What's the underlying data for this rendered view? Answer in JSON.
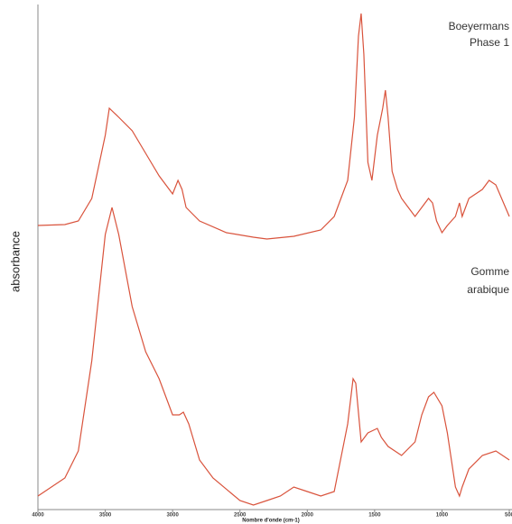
{
  "chart_data": {
    "type": "line",
    "ylabel": "absorbance",
    "xlabel": "Nombre d'onde (cm-1)",
    "xlim": [
      4000,
      480
    ],
    "ylim": [
      0,
      560
    ],
    "xticks": [
      4000,
      3500,
      3000,
      2500,
      2000,
      1500,
      1000,
      500
    ],
    "annotations": [
      [
        "Boeyermans",
        "Phase 1"
      ],
      [
        "Gomme",
        "arabique"
      ]
    ],
    "series": [
      {
        "color": "#d9533c",
        "x": [
          4000,
          3800,
          3700,
          3600,
          3500,
          3470,
          3400,
          3300,
          3200,
          3100,
          3000,
          2960,
          2930,
          2900,
          2800,
          2600,
          2400,
          2300,
          2100,
          1900,
          1800,
          1700,
          1650,
          1620,
          1600,
          1580,
          1550,
          1520,
          1480,
          1440,
          1420,
          1400,
          1370,
          1330,
          1300,
          1250,
          1200,
          1150,
          1100,
          1070,
          1040,
          1000,
          960,
          900,
          870,
          850,
          800,
          700,
          650,
          600,
          500
        ],
        "values": [
          315,
          316,
          320,
          345,
          415,
          445,
          435,
          420,
          395,
          370,
          350,
          365,
          355,
          335,
          320,
          307,
          302,
          300,
          303,
          310,
          325,
          365,
          435,
          525,
          550,
          505,
          385,
          365,
          415,
          445,
          465,
          435,
          375,
          355,
          345,
          335,
          325,
          335,
          345,
          340,
          320,
          307,
          315,
          325,
          340,
          325,
          345,
          355,
          365,
          360,
          325
        ]
      },
      {
        "color": "#d9533c",
        "x": [
          4000,
          3800,
          3700,
          3600,
          3500,
          3450,
          3400,
          3300,
          3200,
          3100,
          3000,
          2950,
          2920,
          2880,
          2800,
          2700,
          2500,
          2400,
          2300,
          2200,
          2100,
          2000,
          1900,
          1800,
          1700,
          1660,
          1640,
          1600,
          1550,
          1480,
          1450,
          1400,
          1300,
          1200,
          1150,
          1100,
          1060,
          1000,
          960,
          900,
          870,
          850,
          800,
          700,
          600,
          500
        ],
        "values": [
          15,
          35,
          65,
          165,
          305,
          335,
          305,
          225,
          175,
          145,
          105,
          105,
          108,
          95,
          55,
          35,
          10,
          5,
          10,
          15,
          25,
          20,
          15,
          20,
          95,
          145,
          140,
          75,
          85,
          90,
          80,
          70,
          60,
          75,
          105,
          125,
          130,
          115,
          85,
          25,
          15,
          25,
          45,
          60,
          65,
          55
        ]
      }
    ]
  }
}
